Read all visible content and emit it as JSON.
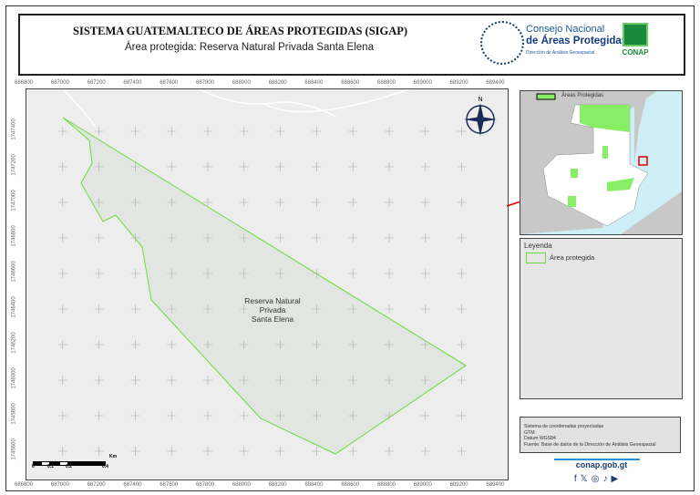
{
  "header": {
    "title": "SISTEMA GUATEMALTECO DE ÁREAS PROTEGIDAS  (SIGAP)",
    "subtitle": "Área protegida: Reserva Natural Privada Santa Elena",
    "org_line1": "Consejo Nacional",
    "org_line2": "de Áreas Protegidas",
    "org_line3": "Dirección de Análisis Geoespacial",
    "conap_logo": "CONAP",
    "seal_text": "GOBIERNO DE LA REPÚBLICA GUATEMALA"
  },
  "map": {
    "x_ticks": [
      "686800",
      "687000",
      "687200",
      "687400",
      "687600",
      "687800",
      "688000",
      "688200",
      "688400",
      "688600",
      "688800",
      "689000",
      "689200",
      "689400"
    ],
    "y_ticks": [
      "1747400",
      "1747200",
      "1747000",
      "1746800",
      "1746600",
      "1746400",
      "1746200",
      "1746000",
      "1745800",
      "1745600"
    ],
    "area_label": [
      "Reserva Natural",
      "Privada",
      "Santa Elena"
    ],
    "north": "N",
    "scale": {
      "labels": [
        "0",
        "0.1",
        "0.2",
        "0.4"
      ],
      "unit": "Km"
    },
    "polygon_color": "#66dd33",
    "fill": "#e4e8e4"
  },
  "inset": {
    "legend_label": "Áreas Protegidas"
  },
  "legend": {
    "title": "Leyenda",
    "item": "Área protegida"
  },
  "info": {
    "lines": [
      "Sistema de coordenadas proyectadas",
      "GTM",
      "Datum WGS84",
      "Fuente: Base de datos de la Dirección de Análisis Geoespacial"
    ]
  },
  "footer": {
    "website": "conap.gob.gt",
    "social": [
      "facebook",
      "x",
      "instagram",
      "tiktok",
      "youtube"
    ]
  }
}
